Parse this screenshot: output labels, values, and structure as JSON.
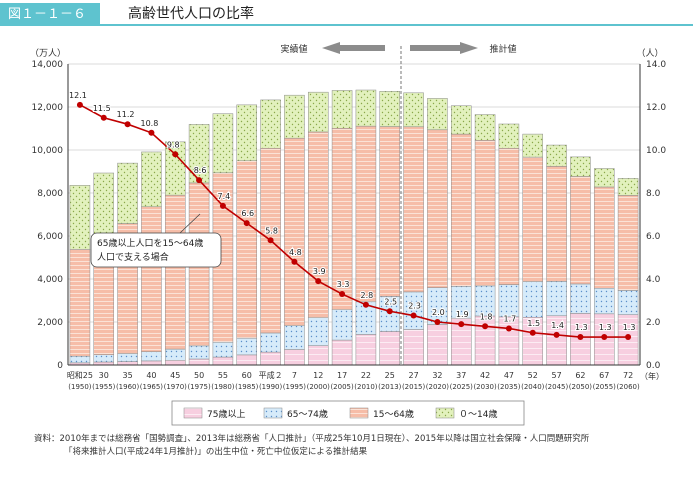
{
  "header": {
    "figure_label": "図１－１－６",
    "title": "高齢世代人口の比率"
  },
  "chart_data": {
    "type": "bar",
    "stacked": true,
    "left_axis_unit": "（万人）",
    "right_axis_unit": "（人）",
    "x_unit": "（年）",
    "left_ticks": [
      "0",
      "2,000",
      "4,000",
      "6,000",
      "8,000",
      "10,000",
      "12,000",
      "14,000"
    ],
    "right_ticks": [
      "0.0",
      "2.0",
      "4.0",
      "6.0",
      "8.0",
      "10.0",
      "12.0",
      "14.0"
    ],
    "ylim_left": [
      0,
      14000
    ],
    "ylim_right": [
      0,
      14
    ],
    "grid": true,
    "categories_top": [
      "昭和25",
      "30",
      "35",
      "40",
      "45",
      "50",
      "55",
      "60",
      "平成２",
      "7",
      "12",
      "17",
      "22",
      "25",
      "27",
      "32",
      "37",
      "42",
      "47",
      "52",
      "57",
      "62",
      "67",
      "72"
    ],
    "categories_bottom": [
      "(1950)",
      "(1955)",
      "(1960)",
      "(1965)",
      "(1970)",
      "(1975)",
      "(1980)",
      "(1985)",
      "(1990)",
      "(1995)",
      "(2000)",
      "(2005)",
      "(2010)",
      "(2013)",
      "(2015)",
      "(2020)",
      "(2025)",
      "(2030)",
      "(2035)",
      "(2040)",
      "(2045)",
      "(2050)",
      "(2055)",
      "(2060)"
    ],
    "series": [
      {
        "name": "75歳以上",
        "color": "#f6c8da",
        "values": [
          100,
          140,
          160,
          190,
          220,
          280,
          370,
          470,
          600,
          720,
          900,
          1160,
          1420,
          1560,
          1650,
          1880,
          2180,
          2280,
          2240,
          2220,
          2290,
          2400,
          2380,
          2340
        ]
      },
      {
        "name": "65～74歳",
        "color": "#cfe6f7",
        "values": [
          310,
          340,
          370,
          430,
          520,
          610,
          690,
          780,
          890,
          1110,
          1300,
          1410,
          1520,
          1630,
          1750,
          1720,
          1480,
          1400,
          1500,
          1660,
          1600,
          1370,
          1190,
          1130
        ]
      },
      {
        "name": "15～64歳",
        "color": "#f5b7a1",
        "values": [
          4970,
          5470,
          6050,
          6740,
          7160,
          7580,
          7880,
          8250,
          8590,
          8720,
          8640,
          8440,
          8170,
          7900,
          7680,
          7340,
          7080,
          6770,
          6340,
          5790,
          5350,
          5000,
          4710,
          4420
        ]
      },
      {
        "name": "０～14歳",
        "color": "#dceeb0",
        "values": [
          2980,
          2980,
          2810,
          2550,
          2480,
          2720,
          2750,
          2600,
          2250,
          2000,
          1850,
          1760,
          1680,
          1640,
          1580,
          1460,
          1320,
          1200,
          1130,
          1070,
          990,
          910,
          860,
          790
        ]
      }
    ],
    "ratio_line": {
      "color": "#c00000",
      "values": [
        12.1,
        11.5,
        11.2,
        10.8,
        9.8,
        8.6,
        7.4,
        6.6,
        5.8,
        4.8,
        3.9,
        3.3,
        2.8,
        2.5,
        2.3,
        2.0,
        1.9,
        1.8,
        1.7,
        1.5,
        1.4,
        1.3,
        1.3,
        1.3
      ],
      "labels": [
        "12.1",
        "11.5",
        "11.2",
        "10.8",
        "9.8",
        "8.6",
        "7.4",
        "6.6",
        "5.8",
        "4.8",
        "3.9",
        "3.3",
        "2.8",
        "2.5",
        "2.3",
        "2.0",
        "1.9",
        "1.8",
        "1.7",
        "1.5",
        "1.4",
        "1.3",
        "1.3",
        "1.3"
      ]
    },
    "annotation_line1": "65歳以上人口を15～64歳",
    "annotation_line2": "人口で支える場合",
    "actual_label": "実績値",
    "estimate_label": "推計値",
    "legend": [
      "75歳以上",
      "65～74歳",
      "15～64歳",
      "０～14歳"
    ]
  },
  "source": {
    "line1": "資料：2010年までは総務省「国勢調査」、2013年は総務省「人口推計」（平成25年10月1日現在）、2015年以降は国立社会保障・人口問題研究所",
    "line2": "「将来推計人口(平成24年1月推計)」の出生中位・死亡中位仮定による推計結果"
  }
}
